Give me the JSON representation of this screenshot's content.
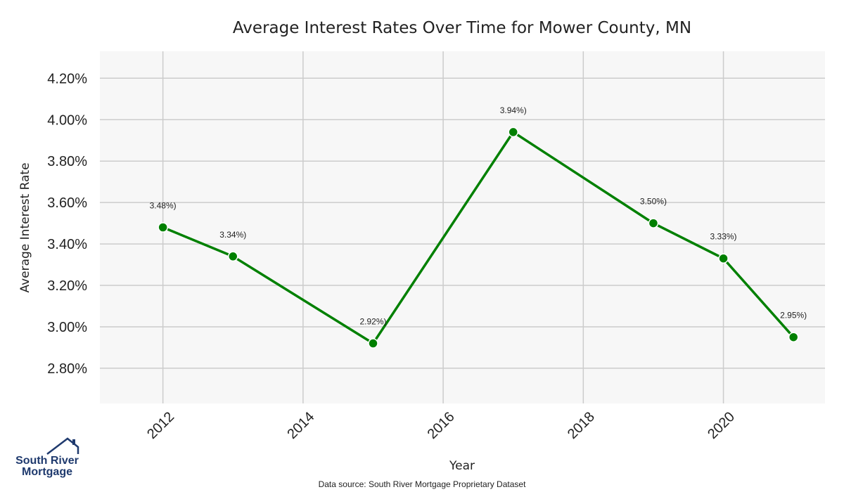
{
  "chart_data": {
    "type": "line",
    "title": "Average Interest Rates Over Time for Mower County, MN",
    "xlabel": "Year",
    "ylabel": "Average Interest Rate",
    "x": [
      2012,
      2013,
      2015,
      2017,
      2019,
      2020,
      2021
    ],
    "series": [
      {
        "values": [
          3.48,
          3.34,
          2.92,
          3.94,
          3.5,
          3.33,
          2.95
        ],
        "point_labels": [
          "3.48%)",
          "3.34%)",
          "2.92%)",
          "3.94%)",
          "3.50%)",
          "3.33%)",
          "2.95%)"
        ],
        "color": "#008000"
      }
    ],
    "xticks": [
      2012,
      2014,
      2016,
      2018,
      2020
    ],
    "yticks": [
      "2.80%",
      "3.00%",
      "3.20%",
      "3.40%",
      "3.60%",
      "3.80%",
      "4.00%",
      "4.20%"
    ],
    "ytick_values": [
      2.8,
      3.0,
      3.2,
      3.4,
      3.6,
      3.8,
      4.0,
      4.2
    ],
    "xlim": [
      2011.1,
      2021.45
    ],
    "ylim": [
      2.63,
      4.33
    ],
    "grid": true,
    "plot_background": "#f7f7f7",
    "grid_color": "#cccccc"
  },
  "source_note": "Data source: South River Mortgage Proprietary Dataset",
  "logo": {
    "line1": "South River",
    "line2": "Mortgage",
    "color": "#1f3a6e"
  }
}
